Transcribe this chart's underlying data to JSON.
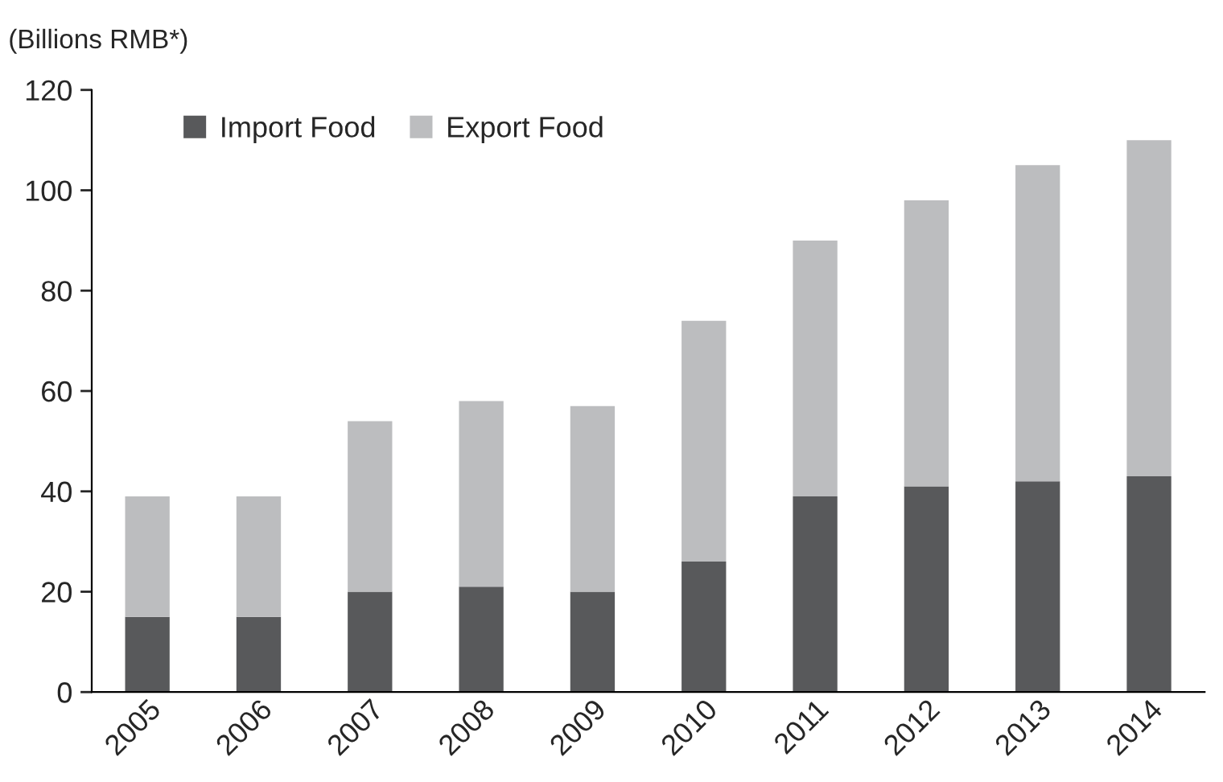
{
  "chart_data": {
    "type": "bar",
    "ylabel": "(Billions RMB*)",
    "categories": [
      "2005",
      "2006",
      "2007",
      "2008",
      "2009",
      "2010",
      "2011",
      "2012",
      "2013",
      "2014"
    ],
    "stacked": true,
    "series": [
      {
        "name": "Import Food",
        "color": "#58595b",
        "values": [
          15,
          15,
          20,
          21,
          20,
          26,
          39,
          41,
          42,
          43
        ]
      },
      {
        "name": "Export Food",
        "color": "#bcbdbf",
        "values": [
          24,
          24,
          34,
          37,
          37,
          48,
          51,
          57,
          63,
          67
        ]
      }
    ],
    "ylim": [
      0,
      120
    ],
    "yticks": [
      0,
      20,
      40,
      60,
      80,
      100,
      120
    ],
    "grid": false,
    "legend": "top left"
  }
}
